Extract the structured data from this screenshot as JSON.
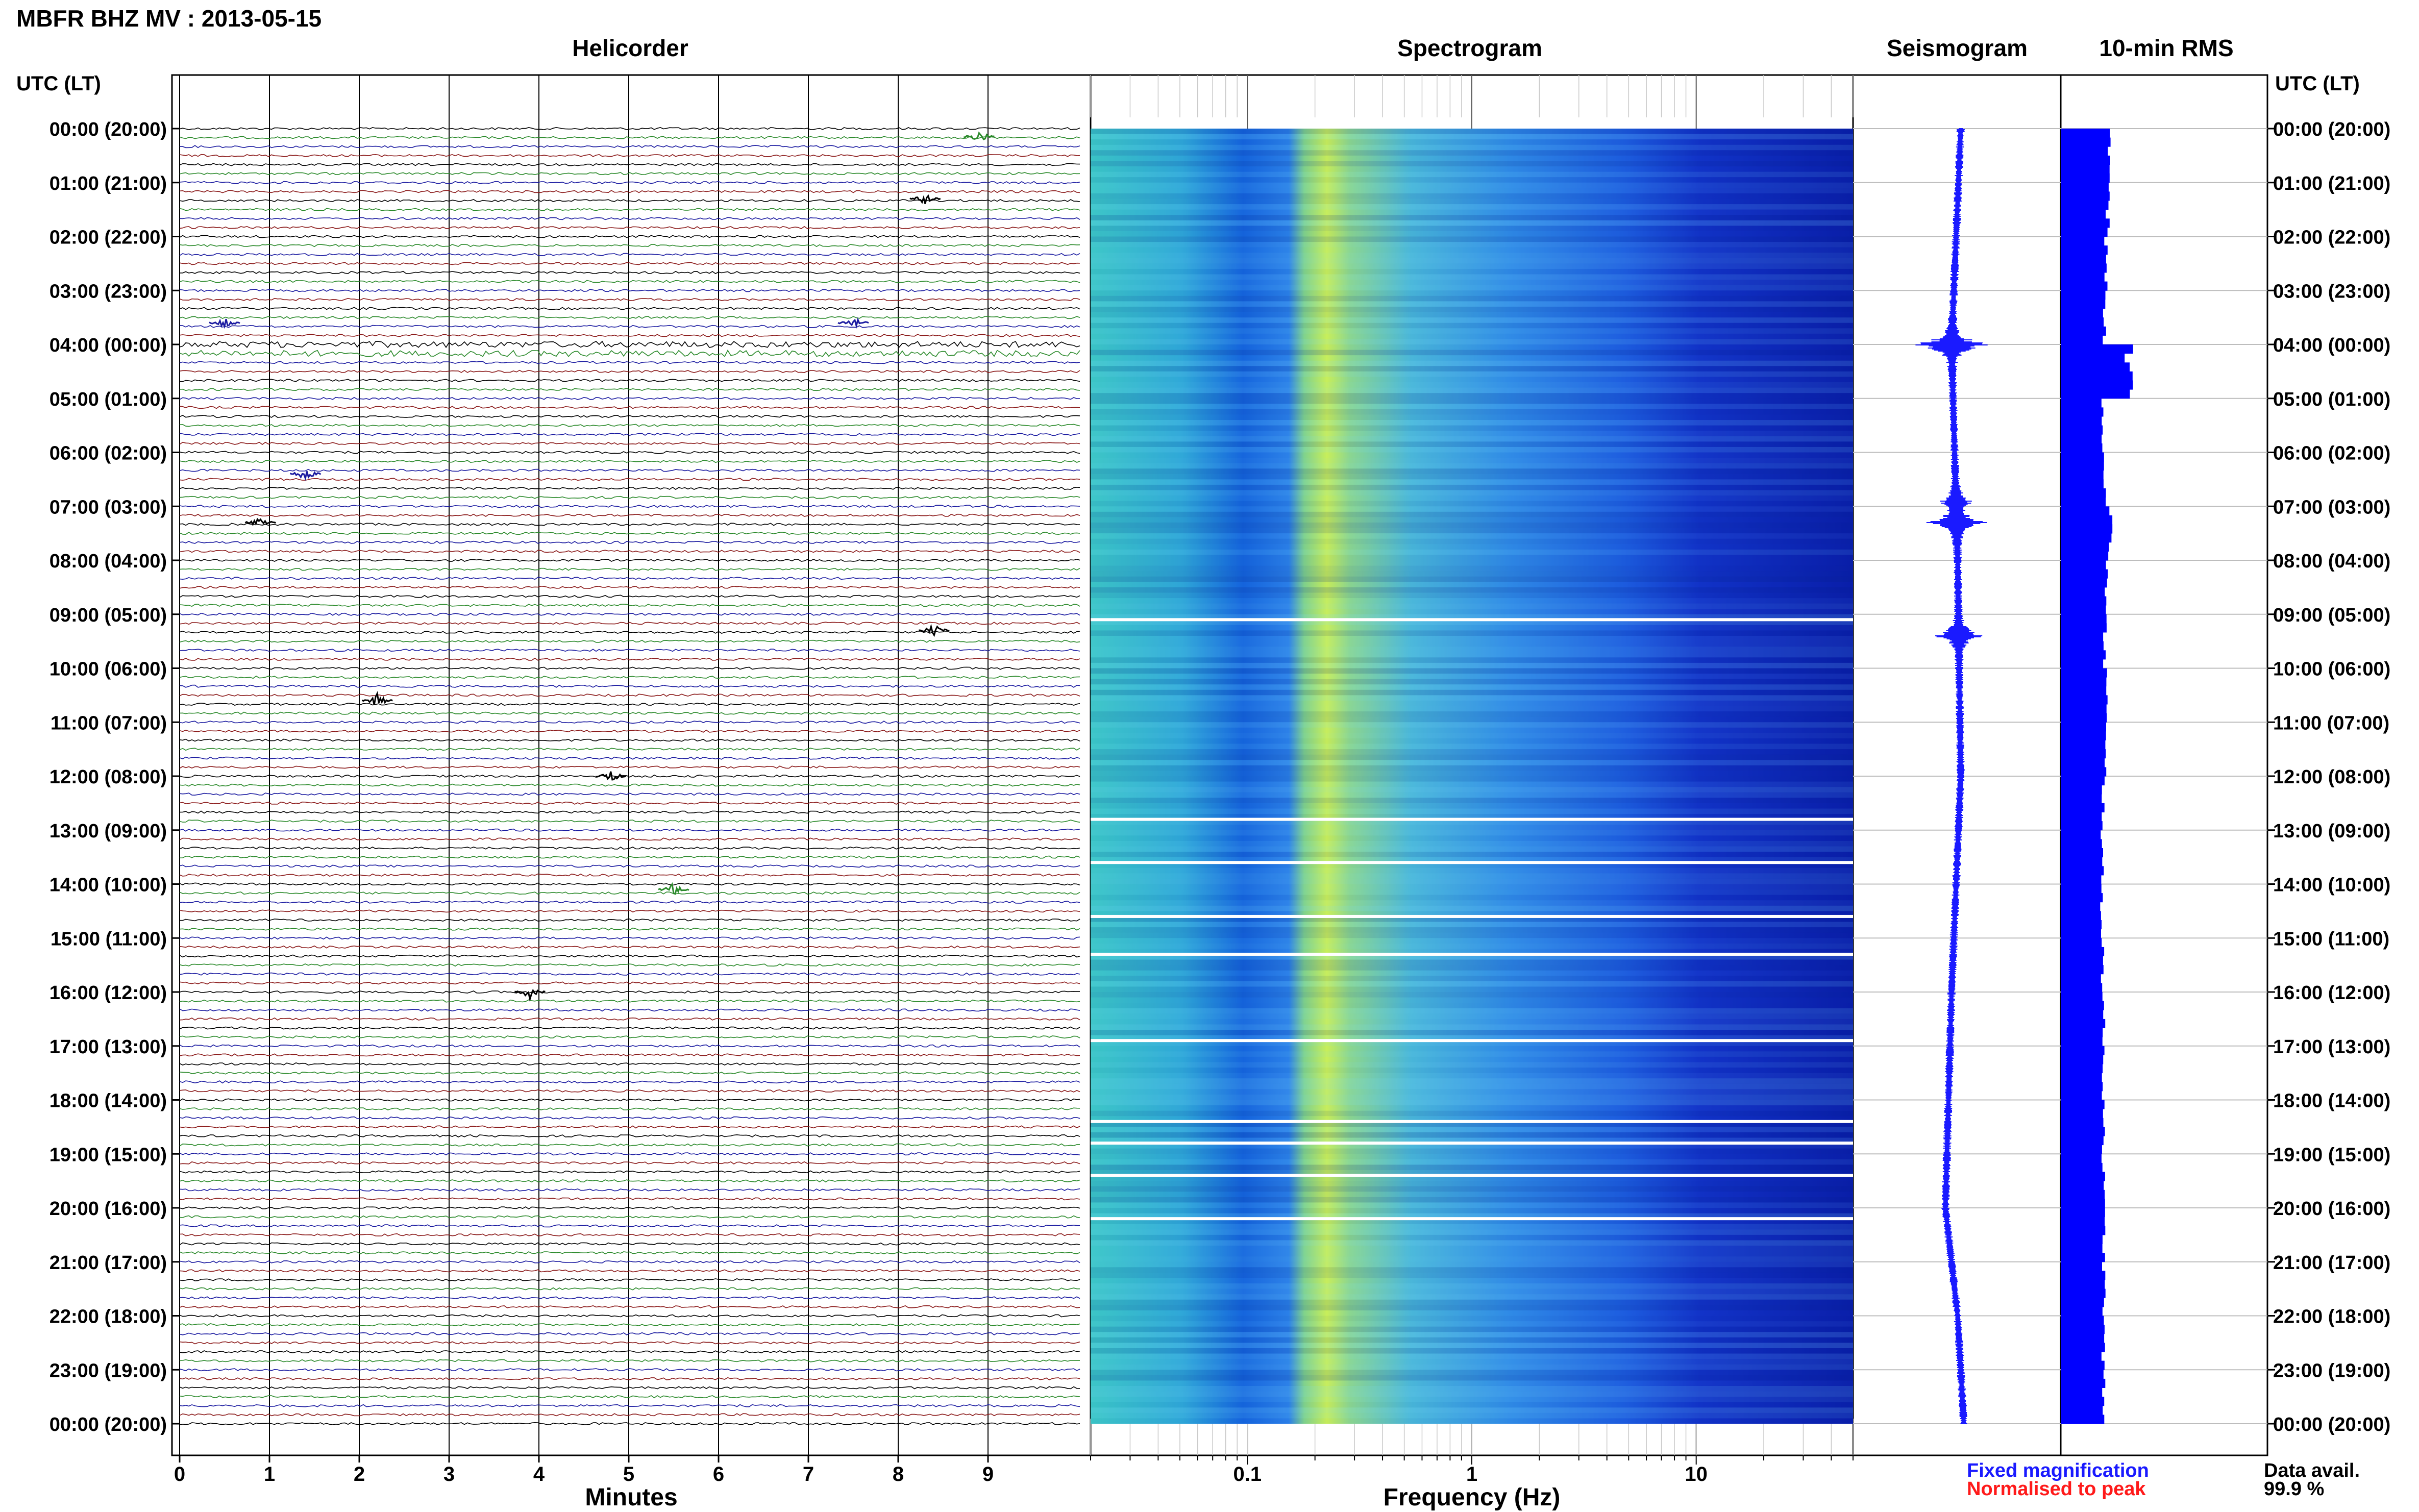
{
  "title": "MBFR BHZ MV : 2013-05-15",
  "panels": {
    "helicorder": "Helicorder",
    "spectrogram": "Spectrogram",
    "seismogram": "Seismogram",
    "rms": "10-min RMS"
  },
  "axis_left_header": "UTC (LT)",
  "axis_right_header": "UTC (LT)",
  "xlabel_minutes": "Minutes",
  "xlabel_frequency": "Frequency (Hz)",
  "legend": {
    "fixed": "Fixed magnification",
    "normalised": "Normalised to peak",
    "fixed_color": "#1a1aff",
    "normalised_color": "#ff1a1a"
  },
  "data_avail_label": "Data avail.",
  "data_avail_value": "99.9 %",
  "colors": {
    "trace": [
      "#000000",
      "#2b8a2b",
      "#1a1aa0",
      "#8b1a1a"
    ],
    "seismogram": "#1a1aff",
    "rms": "#0000ff"
  },
  "chart_data": [
    {
      "type": "line",
      "name": "helicorder",
      "time_labels": [
        "00:00 (20:00)",
        "01:00 (21:00)",
        "02:00 (22:00)",
        "03:00 (23:00)",
        "04:00 (00:00)",
        "05:00 (01:00)",
        "06:00 (02:00)",
        "07:00 (03:00)",
        "08:00 (04:00)",
        "09:00 (05:00)",
        "10:00 (06:00)",
        "11:00 (07:00)",
        "12:00 (08:00)",
        "13:00 (09:00)",
        "14:00 (10:00)",
        "15:00 (11:00)",
        "16:00 (12:00)",
        "17:00 (13:00)",
        "18:00 (14:00)",
        "19:00 (15:00)",
        "20:00 (16:00)",
        "21:00 (17:00)",
        "22:00 (18:00)",
        "23:00 (19:00)",
        "00:00 (20:00)"
      ],
      "minute_ticks": [
        "0",
        "1",
        "2",
        "3",
        "4",
        "5",
        "6",
        "7",
        "8",
        "9"
      ],
      "lines_per_hour": 6,
      "hours": 24,
      "events": [
        {
          "hour": 0.15,
          "minute": 8.9
        },
        {
          "hour": 1.3,
          "minute": 8.3
        },
        {
          "hour": 3.6,
          "minute": 0.5
        },
        {
          "hour": 3.6,
          "minute": 7.5
        },
        {
          "hour": 6.4,
          "minute": 1.4
        },
        {
          "hour": 7.3,
          "minute": 0.9
        },
        {
          "hour": 9.3,
          "minute": 8.4
        },
        {
          "hour": 10.6,
          "minute": 2.2
        },
        {
          "hour": 12.0,
          "minute": 4.8
        },
        {
          "hour": 14.1,
          "minute": 5.5
        },
        {
          "hour": 16.0,
          "minute": 3.9
        }
      ]
    },
    {
      "type": "heatmap",
      "name": "spectrogram",
      "x_scale": "log",
      "xlim": [
        0.02,
        50
      ],
      "x_ticks": [
        "0.1",
        "1",
        "10"
      ],
      "x_tick_values": [
        0.1,
        1,
        10
      ],
      "peak_band_hz": [
        0.2,
        0.3
      ],
      "noise_floor_above_hz": 10,
      "gap_hours": [
        9.1,
        12.8,
        13.6,
        14.6,
        15.3,
        16.9,
        18.4,
        18.8,
        19.4,
        20.2
      ]
    },
    {
      "type": "line",
      "name": "seismogram",
      "drift": [
        [
          0,
          0.0
        ],
        [
          4,
          -0.15
        ],
        [
          8,
          -0.05
        ],
        [
          12,
          0.0
        ],
        [
          16,
          -0.15
        ],
        [
          20,
          -0.25
        ],
        [
          22,
          -0.05
        ],
        [
          24,
          0.05
        ]
      ],
      "bursts": [
        [
          4.0,
          1.0
        ],
        [
          7.3,
          0.8
        ],
        [
          9.4,
          0.6
        ],
        [
          6.9,
          0.4
        ]
      ]
    },
    {
      "type": "bar",
      "name": "10-min RMS",
      "categories": [
        "00:00",
        "01:00",
        "02:00",
        "03:00",
        "04:00",
        "05:00",
        "06:00",
        "07:00",
        "08:00",
        "09:00",
        "10:00",
        "11:00",
        "12:00",
        "13:00",
        "14:00",
        "15:00",
        "16:00",
        "17:00",
        "18:00",
        "19:00",
        "20:00",
        "21:00",
        "22:00",
        "23:00"
      ],
      "values": [
        0.95,
        0.85,
        0.8,
        0.75,
        1.6,
        0.7,
        0.75,
        0.95,
        0.8,
        0.75,
        0.8,
        0.75,
        0.7,
        0.65,
        0.65,
        0.68,
        0.7,
        0.7,
        0.72,
        0.7,
        0.72,
        0.72,
        0.7,
        0.7
      ]
    }
  ]
}
